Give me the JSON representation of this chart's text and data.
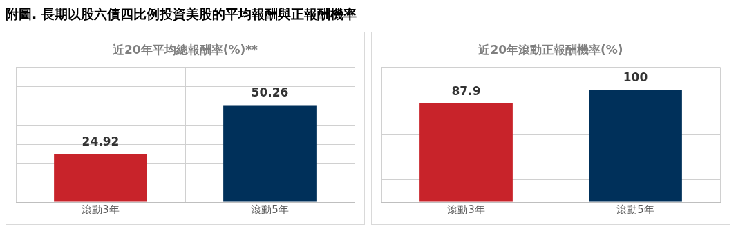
{
  "chart_data": [
    {
      "type": "bar",
      "title": "近20年平均總報酬率(%)**",
      "annotations": [
        "附圖. 長期以股六債四比例投資美股的平均報酬與正報酬機率"
      ],
      "categories": [
        "滾動3年",
        "滾動5年"
      ],
      "values": [
        24.92,
        50.26
      ],
      "colors": [
        "#c8232a",
        "#00305a"
      ],
      "ylim": [
        0,
        70
      ],
      "yticks": [
        0,
        10,
        20,
        30,
        40,
        50,
        60,
        70
      ],
      "tick_labels": "x",
      "grid": true,
      "data_labels": true
    },
    {
      "type": "bar",
      "title": "近20年滾動正報酬機率(%)",
      "categories": [
        "滾動3年",
        "滾動5年"
      ],
      "values": [
        87.9,
        100
      ],
      "colors": [
        "#c8232a",
        "#00305a"
      ],
      "ylim": [
        0,
        120
      ],
      "yticks": [
        0,
        20,
        40,
        60,
        80,
        100,
        120
      ],
      "tick_labels": "x",
      "grid": true,
      "data_labels": true
    }
  ]
}
